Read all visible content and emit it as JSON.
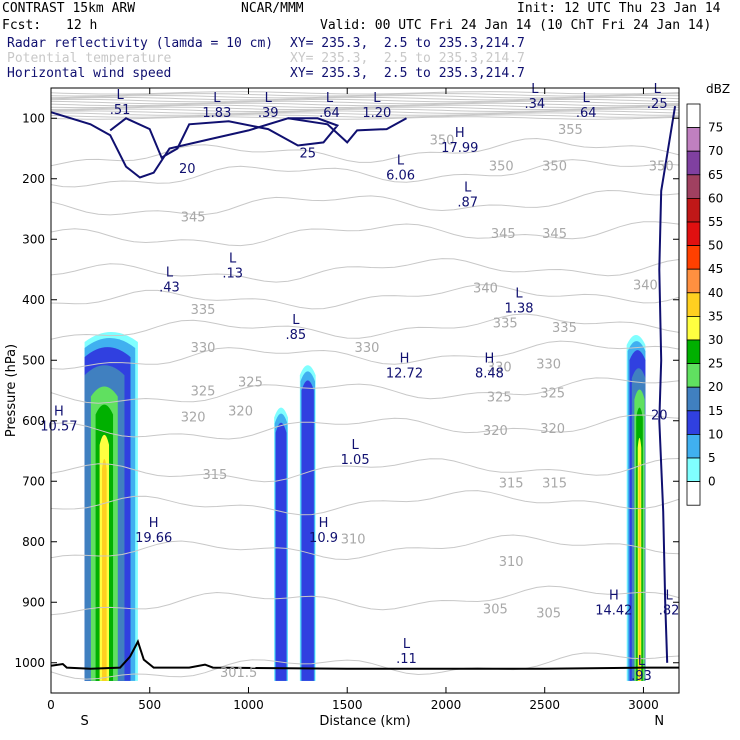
{
  "header": {
    "model": "CONTRAST 15km ARW",
    "org": "NCAR/MMM",
    "init": "Init: 12 UTC Thu 23 Jan 14",
    "fcst_label": "Fcst:",
    "fcst_value": "12 h",
    "valid": "Valid: 00 UTC Fri 24 Jan 14 (10 ChT Fri 24 Jan 14)",
    "fields": [
      {
        "name": "Radar reflectivity (lamda = 10 cm)",
        "xy": "XY= 235.3,  2.5 to 235.3,214.7"
      },
      {
        "name": "Potential temperature",
        "xy": "XY= 235.3,  2.5 to 235.3,214.7"
      },
      {
        "name": "Horizontal wind speed",
        "xy": "XY= 235.3,  2.5 to 235.3,214.7"
      }
    ]
  },
  "colors": {
    "navy": "#101070",
    "theta": "#c8c8c8",
    "terrain": "#000000"
  },
  "chart_data": {
    "type": "cross-section",
    "xlabel": "Distance (km)",
    "ylabel": "Pressure (hPa)",
    "xlim": [
      0,
      3180
    ],
    "ylim": [
      1050,
      50
    ],
    "xticks": [
      0,
      500,
      1000,
      1500,
      2000,
      2500,
      3000
    ],
    "yticks": [
      100,
      200,
      300,
      400,
      500,
      600,
      700,
      800,
      900,
      1000
    ],
    "xend_labels": {
      "left": "S",
      "right": "N"
    },
    "colorbar": {
      "unit": "dBZ",
      "levels": [
        75,
        70,
        65,
        60,
        55,
        50,
        45,
        40,
        35,
        30,
        25,
        20,
        15,
        10,
        5,
        0
      ],
      "colors": [
        "#ffffff",
        "#c080c0",
        "#8040a0",
        "#a04060",
        "#c01818",
        "#e01010",
        "#ff4000",
        "#ff9040",
        "#ffd020",
        "#ffff40",
        "#00b000",
        "#60e060",
        "#4080c0",
        "#3040e0",
        "#40b0f0",
        "#80ffff",
        "#ffffff"
      ]
    },
    "theta_labels": [
      {
        "text": "350",
        "x": 1980,
        "p": 135
      },
      {
        "text": "355",
        "x": 2630,
        "p": 118
      },
      {
        "text": "350",
        "x": 2280,
        "p": 178
      },
      {
        "text": "350",
        "x": 2550,
        "p": 178
      },
      {
        "text": "350",
        "x": 3090,
        "p": 178
      },
      {
        "text": "345",
        "x": 720,
        "p": 262
      },
      {
        "text": "345",
        "x": 2290,
        "p": 290
      },
      {
        "text": "345",
        "x": 2550,
        "p": 290
      },
      {
        "text": "340",
        "x": 2200,
        "p": 380
      },
      {
        "text": "340",
        "x": 3010,
        "p": 375
      },
      {
        "text": "335",
        "x": 770,
        "p": 415
      },
      {
        "text": "335",
        "x": 2300,
        "p": 438
      },
      {
        "text": "335",
        "x": 2600,
        "p": 445
      },
      {
        "text": "330",
        "x": 770,
        "p": 478
      },
      {
        "text": "330",
        "x": 1600,
        "p": 478
      },
      {
        "text": "330",
        "x": 2270,
        "p": 510
      },
      {
        "text": "330",
        "x": 2520,
        "p": 505
      },
      {
        "text": "325",
        "x": 770,
        "p": 550
      },
      {
        "text": "325",
        "x": 1010,
        "p": 535
      },
      {
        "text": "325",
        "x": 2270,
        "p": 560
      },
      {
        "text": "325",
        "x": 2540,
        "p": 553
      },
      {
        "text": "320",
        "x": 720,
        "p": 593
      },
      {
        "text": "320",
        "x": 960,
        "p": 583
      },
      {
        "text": "320",
        "x": 2250,
        "p": 615
      },
      {
        "text": "320",
        "x": 2540,
        "p": 612
      },
      {
        "text": "315",
        "x": 830,
        "p": 688
      },
      {
        "text": "315",
        "x": 2330,
        "p": 702
      },
      {
        "text": "315",
        "x": 2550,
        "p": 702
      },
      {
        "text": "310",
        "x": 1530,
        "p": 795
      },
      {
        "text": "310",
        "x": 2330,
        "p": 832
      },
      {
        "text": "305",
        "x": 2250,
        "p": 910
      },
      {
        "text": "305",
        "x": 2520,
        "p": 917
      },
      {
        "text": "301.5",
        "x": 950,
        "p": 1015
      }
    ],
    "wind_labels": [
      {
        "text": "20",
        "x": 690,
        "p": 182
      },
      {
        "text": "25",
        "x": 1300,
        "p": 157
      },
      {
        "text": "20",
        "x": 3080,
        "p": 590
      }
    ],
    "extrema": [
      {
        "kind": "L",
        "value": ".51",
        "x": 350,
        "p": 75
      },
      {
        "kind": "L",
        "value": "1.83",
        "x": 840,
        "p": 80
      },
      {
        "kind": "L",
        "value": ".39",
        "x": 1100,
        "p": 80
      },
      {
        "kind": "L",
        "value": ".64",
        "x": 1410,
        "p": 80
      },
      {
        "kind": "L",
        "value": "1.20",
        "x": 1650,
        "p": 80
      },
      {
        "kind": "L",
        "value": ".34",
        "x": 2450,
        "p": 65
      },
      {
        "kind": "L",
        "value": ".64",
        "x": 2710,
        "p": 80
      },
      {
        "kind": "L",
        "value": ".25",
        "x": 3070,
        "p": 65
      },
      {
        "kind": "H",
        "value": "17.99",
        "x": 2070,
        "p": 138
      },
      {
        "kind": "L",
        "value": "6.06",
        "x": 1770,
        "p": 183
      },
      {
        "kind": "L",
        "value": ".87",
        "x": 2110,
        "p": 228
      },
      {
        "kind": "L",
        "value": ".13",
        "x": 920,
        "p": 345
      },
      {
        "kind": "L",
        "value": ".43",
        "x": 600,
        "p": 368
      },
      {
        "kind": "L",
        "value": "1.38",
        "x": 2370,
        "p": 403
      },
      {
        "kind": "L",
        "value": ".85",
        "x": 1240,
        "p": 447
      },
      {
        "kind": "H",
        "value": "12.72",
        "x": 1790,
        "p": 510
      },
      {
        "kind": "H",
        "value": "8.48",
        "x": 2220,
        "p": 510
      },
      {
        "kind": "H",
        "value": "10.57",
        "x": 40,
        "p": 598
      },
      {
        "kind": "L",
        "value": "1.05",
        "x": 1540,
        "p": 653
      },
      {
        "kind": "H",
        "value": "19.66",
        "x": 520,
        "p": 782
      },
      {
        "kind": "H",
        "value": "10.9",
        "x": 1380,
        "p": 782
      },
      {
        "kind": "H",
        "value": "14.42",
        "x": 2850,
        "p": 902
      },
      {
        "kind": "L",
        "value": ".82",
        "x": 3130,
        "p": 902
      },
      {
        "kind": "L",
        "value": ".11",
        "x": 1800,
        "p": 982
      },
      {
        "kind": "L",
        "value": ".93",
        "x": 2990,
        "p": 1010
      }
    ],
    "storms": [
      {
        "x0": 170,
        "x1": 510,
        "top": 450,
        "core": 270
      },
      {
        "x0": 1130,
        "x1": 1200,
        "top": 575,
        "core": 1165
      },
      {
        "x0": 1260,
        "x1": 1340,
        "top": 505,
        "core": 1300
      },
      {
        "x0": 2880,
        "x1": 3010,
        "top": 455,
        "core": 2980
      }
    ]
  }
}
